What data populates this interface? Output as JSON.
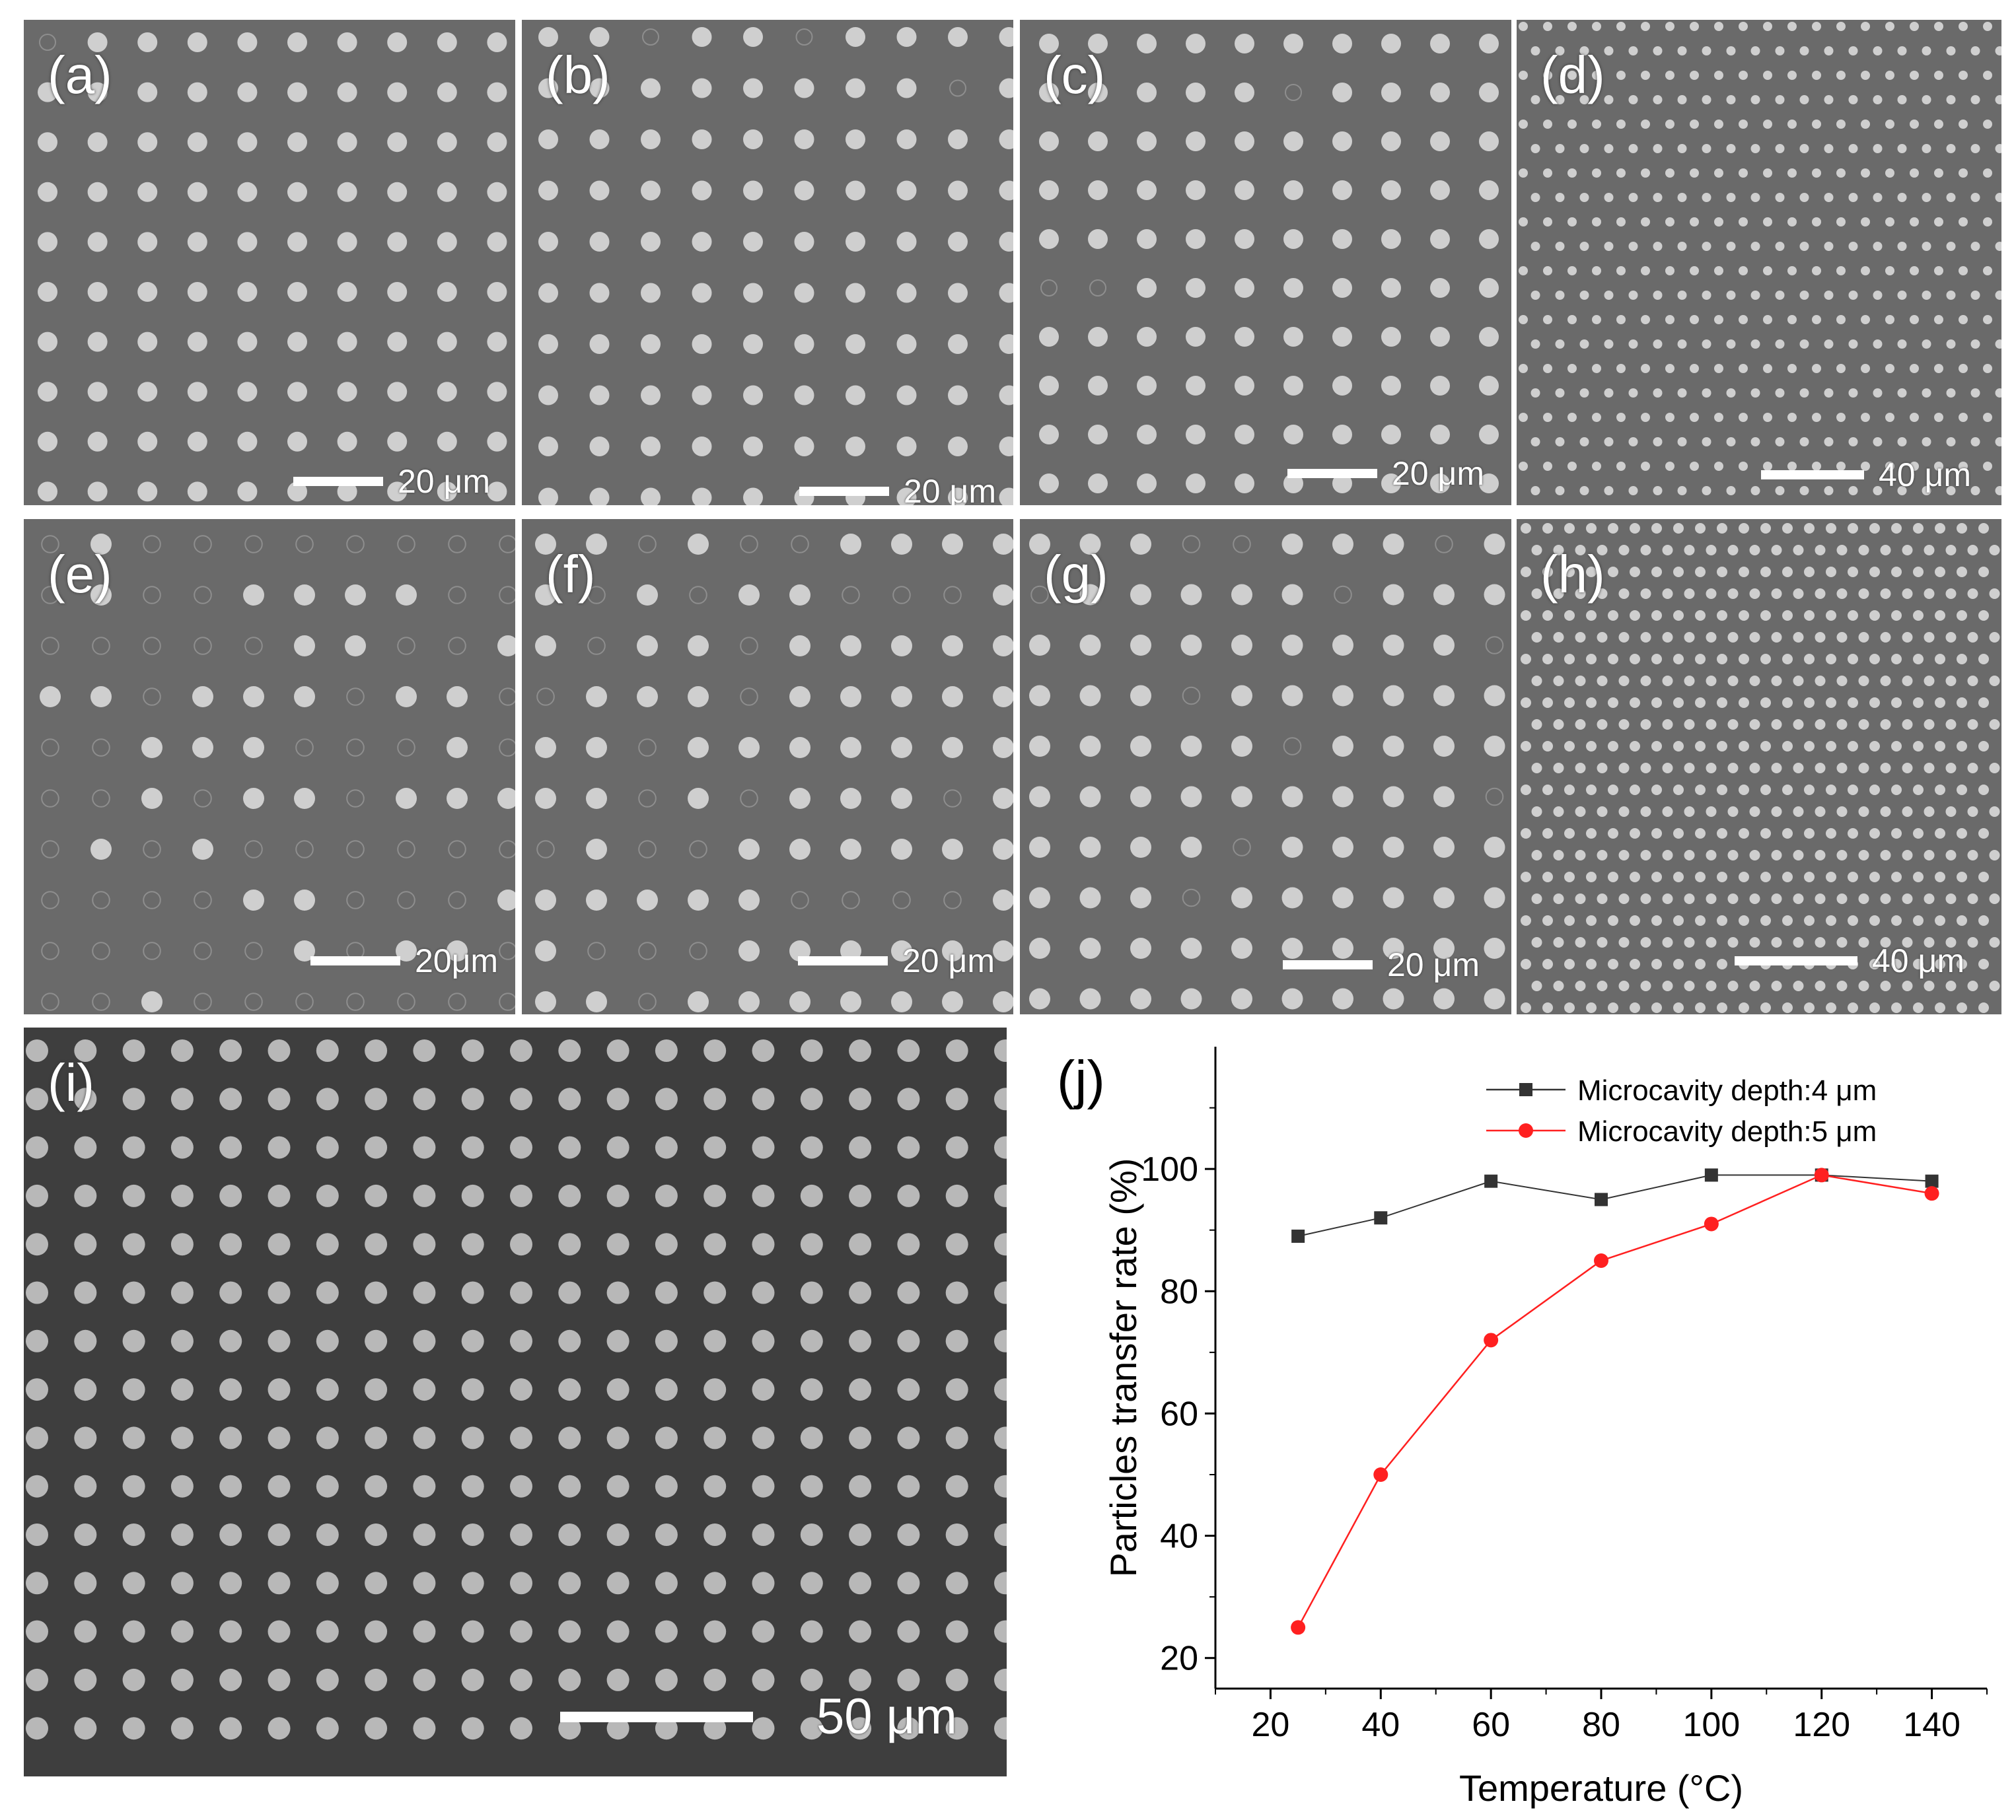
{
  "panels": [
    {
      "id": "a",
      "label": "(a)",
      "scale": "20 μm"
    },
    {
      "id": "b",
      "label": "(b)",
      "scale": "20 μm"
    },
    {
      "id": "c",
      "label": "(c)",
      "scale": "20 μm"
    },
    {
      "id": "d",
      "label": "(d)",
      "scale": "40 μm"
    },
    {
      "id": "e",
      "label": "(e)",
      "scale": "20μm"
    },
    {
      "id": "f",
      "label": "(f)",
      "scale": "20 μm"
    },
    {
      "id": "g",
      "label": "(g)",
      "scale": "20 μm"
    },
    {
      "id": "h",
      "label": "(h)",
      "scale": "40 μm"
    },
    {
      "id": "i",
      "label": "(i)",
      "scale": "50 μm"
    }
  ],
  "colors": {
    "sem_background": "#6a6a6a",
    "sem_particle": "#cfcfcf",
    "series_4um": "#333333",
    "series_5um": "#ff2020"
  },
  "chart_data": {
    "type": "line",
    "panel_label": "(j)",
    "xlabel": "Temperature (°C)",
    "ylabel": "Particles transfer rate (%)",
    "xlim": [
      10,
      150
    ],
    "ylim": [
      15,
      120
    ],
    "xticks": [
      20,
      40,
      60,
      80,
      100,
      120,
      140
    ],
    "yticks": [
      20,
      40,
      60,
      80,
      100
    ],
    "legend_position": "top-right",
    "series": [
      {
        "name": "Microcavity depth:4 μm",
        "marker": "square",
        "x": [
          25,
          40,
          60,
          80,
          100,
          120,
          140
        ],
        "values": [
          89,
          92,
          98,
          95,
          99,
          99,
          98
        ]
      },
      {
        "name": "Microcavity depth:5 μm",
        "marker": "circle",
        "x": [
          25,
          40,
          60,
          80,
          100,
          120,
          140
        ],
        "values": [
          25,
          50,
          72,
          85,
          91,
          99,
          96
        ]
      }
    ]
  }
}
